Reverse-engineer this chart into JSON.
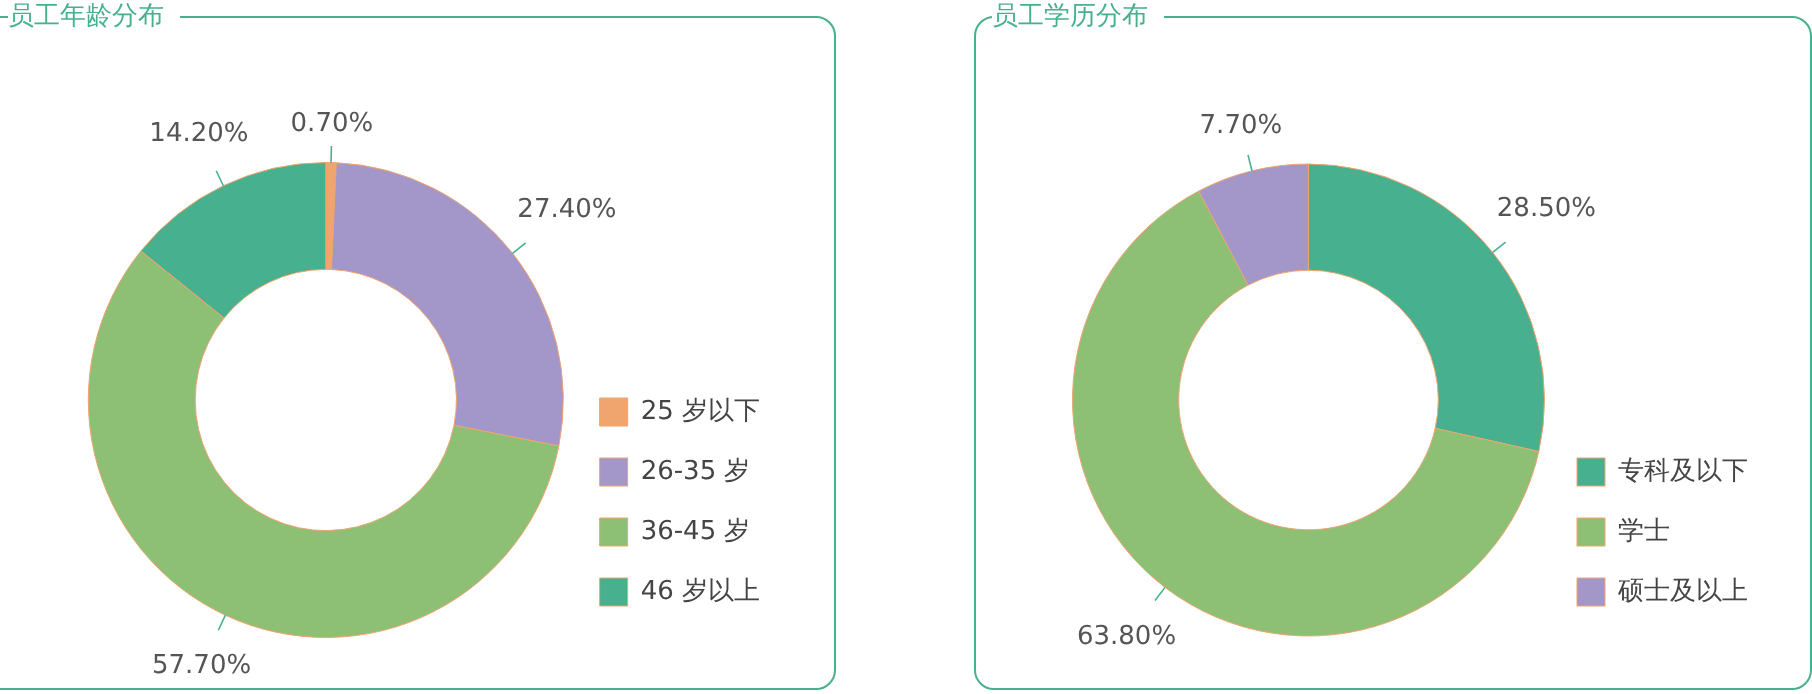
{
  "chart_data": [
    {
      "type": "donut",
      "title": "员工年龄分布",
      "categories": [
        "25 岁以下",
        "26-35 岁",
        "36-45 岁",
        "46 岁以上"
      ],
      "values": [
        0.7,
        27.4,
        57.7,
        14.2
      ],
      "colors": [
        "#f0a46e",
        "#a396c9",
        "#8dc075",
        "#47b08f"
      ],
      "value_labels": [
        "0.70%",
        "27.40%",
        "57.70%",
        "14.20%"
      ],
      "legend": "right"
    },
    {
      "type": "donut",
      "title": "员工学历分布",
      "categories": [
        "专科及以下",
        "学士",
        "硕士及以上"
      ],
      "values": [
        28.5,
        63.8,
        7.7
      ],
      "colors": [
        "#47b08f",
        "#8dc075",
        "#a396c9"
      ],
      "value_labels": [
        "28.50%",
        "63.80%",
        "7.70%"
      ],
      "legend": "right"
    }
  ]
}
